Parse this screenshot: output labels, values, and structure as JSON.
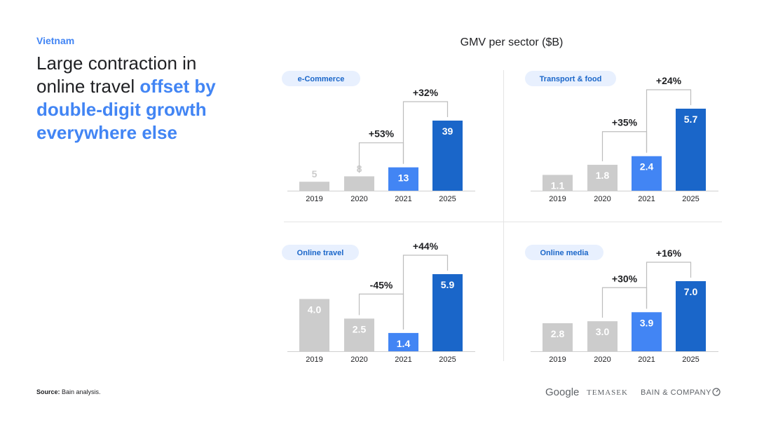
{
  "page": {
    "kicker": "Vietnam",
    "headline_plain": "Large contraction in online travel ",
    "headline_highlight": "offset by double-digit growth everywhere else",
    "chart_title": "GMV per sector ($B)",
    "source_label": "Source:",
    "source_text": " Bain analysis.",
    "logos": {
      "google": "Google",
      "temasek": "TEMASEK",
      "bain": "BAIN & COMPANY"
    }
  },
  "colors": {
    "gray": "#cccccc",
    "light_blue": "#4285f4",
    "dark_blue": "#1a66c9",
    "pill_bg": "#e8f0fe",
    "pill_text": "#1a66c9",
    "text": "#202124",
    "bracket": "#bdbdbd"
  },
  "chart_data": [
    {
      "type": "bar",
      "title": "e-Commerce",
      "categories": [
        "2019",
        "2020",
        "2021",
        "2025"
      ],
      "values": [
        5,
        8,
        13,
        39
      ],
      "labels": [
        "5",
        "8",
        "13",
        "39"
      ],
      "growth": [
        {
          "from": "2020",
          "to": "2021",
          "label": "+53%"
        },
        {
          "from": "2021",
          "to": "2025",
          "label": "+32%"
        }
      ]
    },
    {
      "type": "bar",
      "title": "Transport & food",
      "categories": [
        "2019",
        "2020",
        "2021",
        "2025"
      ],
      "values": [
        1.1,
        1.8,
        2.4,
        5.7
      ],
      "labels": [
        "1.1",
        "1.8",
        "2.4",
        "5.7"
      ],
      "growth": [
        {
          "from": "2020",
          "to": "2021",
          "label": "+35%"
        },
        {
          "from": "2021",
          "to": "2025",
          "label": "+24%"
        }
      ]
    },
    {
      "type": "bar",
      "title": "Online travel",
      "categories": [
        "2019",
        "2020",
        "2021",
        "2025"
      ],
      "values": [
        4.0,
        2.5,
        1.4,
        5.9
      ],
      "labels": [
        "4.0",
        "2.5",
        "1.4",
        "5.9"
      ],
      "growth": [
        {
          "from": "2020",
          "to": "2021",
          "label": "-45%"
        },
        {
          "from": "2021",
          "to": "2025",
          "label": "+44%"
        }
      ]
    },
    {
      "type": "bar",
      "title": "Online media",
      "categories": [
        "2019",
        "2020",
        "2021",
        "2025"
      ],
      "values": [
        2.8,
        3.0,
        3.9,
        7.0
      ],
      "labels": [
        "2.8",
        "3.0",
        "3.9",
        "7.0"
      ],
      "growth": [
        {
          "from": "2020",
          "to": "2021",
          "label": "+30%"
        },
        {
          "from": "2021",
          "to": "2025",
          "label": "+16%"
        }
      ]
    }
  ]
}
